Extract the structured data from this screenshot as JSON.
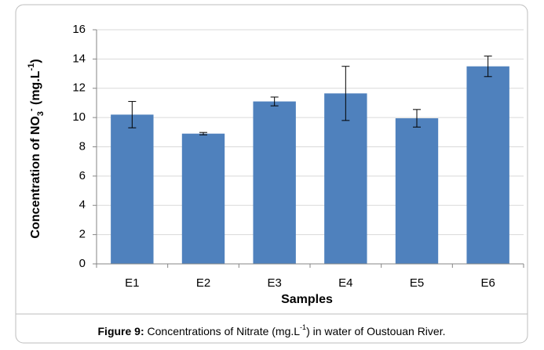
{
  "chart_data": {
    "type": "bar",
    "ylabel_parts": [
      "Concentration of NO",
      "3",
      "-",
      " (mg.L",
      "-1",
      ")"
    ],
    "xlabel": "Samples",
    "categories": [
      "E1",
      "E2",
      "E3",
      "E4",
      "E5",
      "E6"
    ],
    "values": [
      10.2,
      8.9,
      11.1,
      11.65,
      9.95,
      13.5
    ],
    "errors": [
      0.9,
      0.08,
      0.3,
      1.85,
      0.6,
      0.7
    ],
    "color": "#4f81bd",
    "ylim": [
      0,
      16
    ],
    "yticks": [
      0,
      2,
      4,
      6,
      8,
      10,
      12,
      14,
      16
    ],
    "grid": true
  },
  "caption": {
    "label": "Figure 9:",
    "text_parts": [
      " Concentrations of Nitrate (mg.L",
      "-1",
      ") in water of Oustouan River."
    ]
  }
}
